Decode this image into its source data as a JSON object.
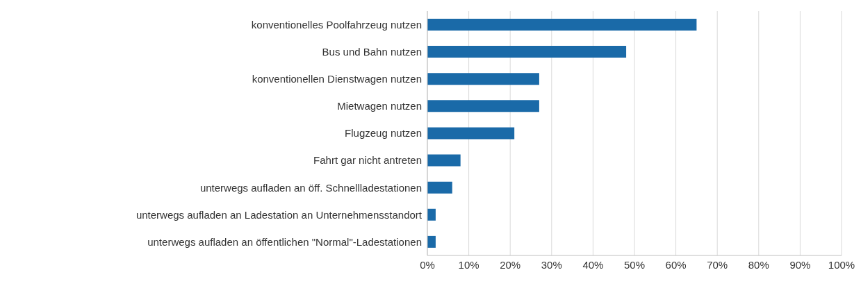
{
  "chart_data": {
    "type": "bar",
    "orientation": "horizontal",
    "categories": [
      "konventionelles Poolfahrzeug nutzen",
      "Bus und Bahn nutzen",
      "konventionellen Dienstwagen nutzen",
      "Mietwagen nutzen",
      "Flugzeug nutzen",
      "Fahrt gar nicht antreten",
      "unterwegs aufladen an öff. Schnellladestationen",
      "unterwegs aufladen an Ladestation an Unternehmensstandort",
      "unterwegs aufladen an öffentlichen \"Normal\"-Ladestationen"
    ],
    "values": [
      65,
      48,
      27,
      27,
      21,
      8,
      6,
      2,
      2
    ],
    "color": "#1a6aa8",
    "xlim": [
      0,
      100
    ],
    "xticks": [
      {
        "value": 0,
        "label": "0%"
      },
      {
        "value": 10,
        "label": "10%"
      },
      {
        "value": 20,
        "label": "20%"
      },
      {
        "value": 30,
        "label": "30%"
      },
      {
        "value": 40,
        "label": "40%"
      },
      {
        "value": 50,
        "label": "50%"
      },
      {
        "value": 60,
        "label": "60%"
      },
      {
        "value": 70,
        "label": "70%"
      },
      {
        "value": 80,
        "label": "80%"
      },
      {
        "value": 90,
        "label": "90%"
      },
      {
        "value": 100,
        "label": "100%"
      }
    ],
    "grid": "x"
  }
}
